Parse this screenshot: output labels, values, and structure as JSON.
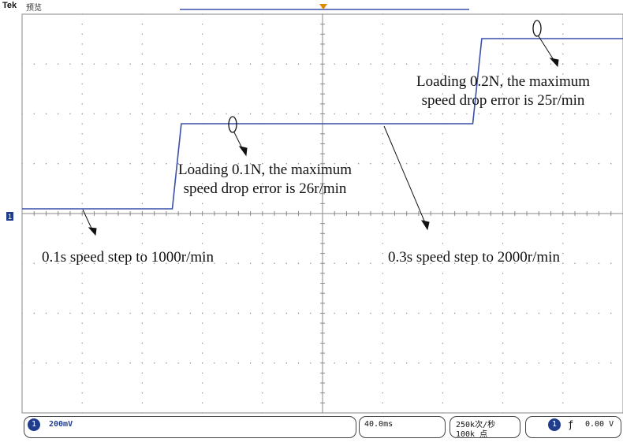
{
  "header": {
    "logo": "Tek",
    "mode": "预览"
  },
  "annotations": {
    "load1_line1": "Loading 0.1N, the maximum",
    "load1_line2": "speed drop error is 26r/min",
    "load2_line1": "Loading 0.2N, the maximum",
    "load2_line2": "speed drop error is 25r/min",
    "step1": "0.1s speed step to 1000r/min",
    "step2": "0.3s speed step to 2000r/min"
  },
  "status_bar": {
    "channel_number": "1",
    "volts_per_div": "200mV",
    "time_per_div": "40.0ms",
    "sample_rate": "250k次/秒",
    "record_length": "100k 点",
    "trigger_channel": "1",
    "trigger_slope_symbol": "ƒ",
    "trigger_level": "0.00 V"
  },
  "ground_marker": "1",
  "colors": {
    "trace": "#3a4fa8",
    "grid": "#8a8a8a",
    "trigger_marker": "#e08a00",
    "channel_marker": "#1f3d8c"
  },
  "chart_data": {
    "type": "line",
    "series": [
      {
        "x": [
          0,
          0.1,
          0.106,
          0.3,
          0.306,
          0.4
        ],
        "y": [
          0,
          0,
          1000,
          1000,
          2000,
          2000
        ]
      }
    ]
  }
}
